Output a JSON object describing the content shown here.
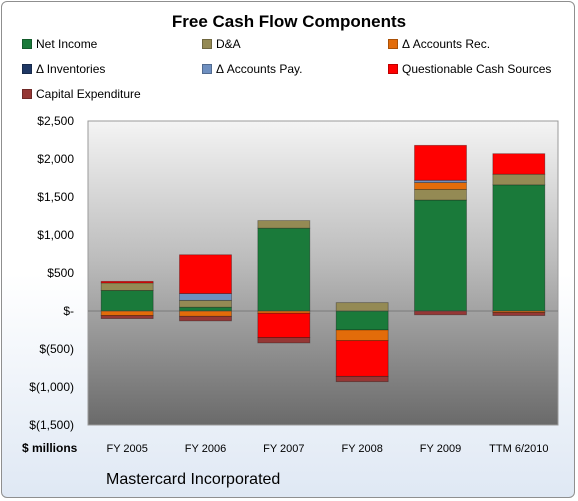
{
  "chart_data": {
    "type": "bar",
    "stacked": true,
    "title": "Free Cash Flow Components",
    "ylabel": "$ millions",
    "ylim": [
      -1500,
      2500
    ],
    "yticks": [
      2500,
      2000,
      1500,
      1000,
      500,
      0,
      -500,
      -1000,
      -1500
    ],
    "ytick_labels": [
      "$2,500",
      "$2,000",
      "$1,500",
      "$1,000",
      "$500",
      "$-",
      "$(500)",
      "$(1,000)",
      "$(1,500)"
    ],
    "categories": [
      "FY 2005",
      "FY 2006",
      "FY 2007",
      "FY 2008",
      "FY 2009",
      "TTM 6/2010"
    ],
    "series": [
      {
        "name": "Net Income",
        "color": "#1a7a3a",
        "values": [
          270,
          50,
          1090,
          -250,
          1460,
          1660
        ]
      },
      {
        "name": "D&A",
        "color": "#948a54",
        "values": [
          100,
          90,
          100,
          110,
          140,
          140
        ]
      },
      {
        "name": "Δ Accounts Rec.",
        "color": "#e36c0a",
        "values": [
          -60,
          -70,
          -30,
          -140,
          90,
          -20
        ]
      },
      {
        "name": "Δ Inventories",
        "color": "#1f3864",
        "values": [
          0,
          0,
          0,
          0,
          0,
          0
        ]
      },
      {
        "name": "Δ Accounts Pay.",
        "color": "#6e8fc0",
        "values": [
          0,
          90,
          0,
          0,
          30,
          0
        ]
      },
      {
        "name": "Questionable Cash Sources",
        "color": "#ff0000",
        "values": [
          20,
          510,
          -320,
          -470,
          460,
          270
        ]
      },
      {
        "name": "Capital Expenditure",
        "color": "#953735",
        "values": [
          -40,
          -60,
          -70,
          -70,
          -50,
          -40
        ]
      }
    ],
    "legend_placement": "top",
    "grid": false,
    "footer": "Mastercard Incorporated"
  }
}
